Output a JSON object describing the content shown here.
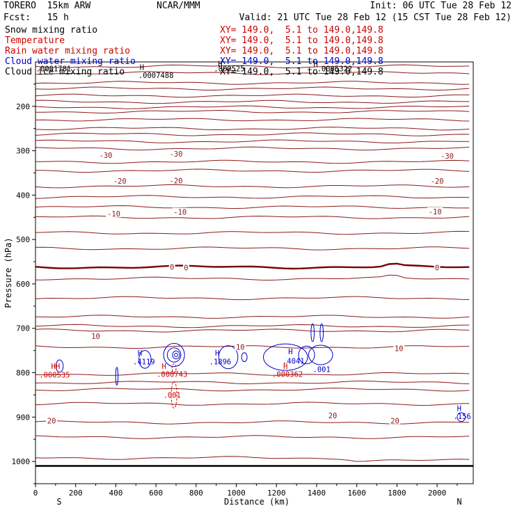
{
  "header": {
    "model": "TORERO  15km ARW",
    "center": "NCAR/MMM",
    "init": "Init: 06 UTC Tue 28 Feb 12",
    "fcst": "Fcst:   15 h",
    "valid": "Valid: 21 UTC Tue 28 Feb 12 (15 CST Tue 28 Feb 12)"
  },
  "fields": [
    {
      "name": "Snow mixing ratio",
      "xy": "",
      "color": "#000000"
    },
    {
      "name": "Temperature",
      "xy": "XY= 149.0,  5.1 to 149.0,149.8",
      "color": "#cc0000"
    },
    {
      "name": "Rain water mixing ratio",
      "xy": "XY= 149.0,  5.1 to 149.0,149.8",
      "color": "#cc0000"
    },
    {
      "name": "Cloud water mixing ratio",
      "xy": "XY= 149.0,  5.1 to 149.0,149.8",
      "color": "#0000cc"
    },
    {
      "name": "Cloud ice mixing ratio",
      "xy": "XY= 149.0,  5.1 to 149.0,149.8",
      "color": "#000000"
    }
  ],
  "snow_xy": "XY= 149.0,  5.1 to 149.0,149.8",
  "colors": {
    "temperature": "#8b1a1a",
    "freezing": "#7a0000",
    "cloud_water": "#0000cc",
    "rain_water": "#cc0000",
    "ground": "#000000",
    "axis": "#000000"
  },
  "chart_data": {
    "type": "contour",
    "xlabel": "Distance (km)",
    "ylabel": "Pressure (hPa)",
    "xlim": [
      0,
      2180
    ],
    "ylim": [
      1050,
      100
    ],
    "xticks": [
      0,
      200,
      400,
      600,
      800,
      1000,
      1200,
      1400,
      1600,
      1800,
      2000
    ],
    "yticks": [
      200,
      300,
      400,
      500,
      600,
      700,
      800,
      900,
      1000
    ],
    "x_end_labels": {
      "left": "S",
      "right": "N"
    },
    "temperature_isotherms_hpa_at_left": [
      110,
      125,
      147,
      160,
      176,
      190,
      202,
      212,
      230,
      250,
      263,
      279,
      295,
      325,
      345,
      380,
      404,
      427,
      450,
      485,
      520,
      562,
      588,
      632,
      674,
      695,
      705,
      742,
      803,
      822,
      838,
      870,
      912,
      945,
      992
    ],
    "temperature_freezing_hpa": 562,
    "temperature_labels": [
      {
        "text": "-30",
        "x": 350,
        "p": 310
      },
      {
        "text": "-30",
        "x": 700,
        "p": 307
      },
      {
        "text": "-30",
        "x": 2050,
        "p": 312
      },
      {
        "text": "-20",
        "x": 420,
        "p": 368
      },
      {
        "text": "-20",
        "x": 700,
        "p": 367
      },
      {
        "text": "-20",
        "x": 2000,
        "p": 368
      },
      {
        "text": "-10",
        "x": 390,
        "p": 442
      },
      {
        "text": "-10",
        "x": 720,
        "p": 438
      },
      {
        "text": "-10",
        "x": 1990,
        "p": 437
      },
      {
        "text": "0",
        "x": 680,
        "p": 562
      },
      {
        "text": "0",
        "x": 750,
        "p": 563
      },
      {
        "text": "0",
        "x": 2000,
        "p": 563
      },
      {
        "text": "10",
        "x": 300,
        "p": 718
      },
      {
        "text": "10",
        "x": 1020,
        "p": 742
      },
      {
        "text": "10",
        "x": 1810,
        "p": 745
      },
      {
        "text": "20",
        "x": 80,
        "p": 908
      },
      {
        "text": "20",
        "x": 1480,
        "p": 896
      },
      {
        "text": "20",
        "x": 1790,
        "p": 908
      }
    ],
    "cloud_water_labels": [
      {
        "text": "H",
        "x": 520,
        "p": 755
      },
      {
        "text": ".4119",
        "x": 540,
        "p": 775
      },
      {
        "text": "H",
        "x": 905,
        "p": 755
      },
      {
        "text": ".1896",
        "x": 920,
        "p": 775
      },
      {
        "text": "H",
        "x": 1270,
        "p": 752
      },
      {
        "text": ".4041",
        "x": 1285,
        "p": 773
      },
      {
        "text": ".001",
        "x": 1425,
        "p": 792
      },
      {
        "text": "H",
        "x": 2110,
        "p": 880
      },
      {
        "text": ".156",
        "x": 2125,
        "p": 898
      }
    ],
    "rain_water_labels": [
      {
        "text": "HH",
        "x": 100,
        "p": 785
      },
      {
        "text": ".000535",
        "x": 95,
        "p": 805
      },
      {
        "text": "H",
        "x": 640,
        "p": 785
      },
      {
        "text": ".000743",
        "x": 680,
        "p": 803
      },
      {
        "text": ".001",
        "x": 680,
        "p": 850
      },
      {
        "text": "H",
        "x": 1245,
        "p": 785
      },
      {
        "text": ".000362",
        "x": 1255,
        "p": 803
      }
    ],
    "ice_labels": [
      {
        "text": ".0001781",
        "x": 90,
        "p": 115
      },
      {
        "text": "H",
        "x": 530,
        "p": 112
      },
      {
        "text": ".0007488",
        "x": 600,
        "p": 130
      },
      {
        "text": ".000525",
        "x": 965,
        "p": 115
      },
      {
        "text": "H",
        "x": 920,
        "p": 104
      },
      {
        "text": ".0005322",
        "x": 1490,
        "p": 115
      },
      {
        "text": "H",
        "x": 1395,
        "p": 104
      }
    ],
    "ground_hpa": 1010
  }
}
